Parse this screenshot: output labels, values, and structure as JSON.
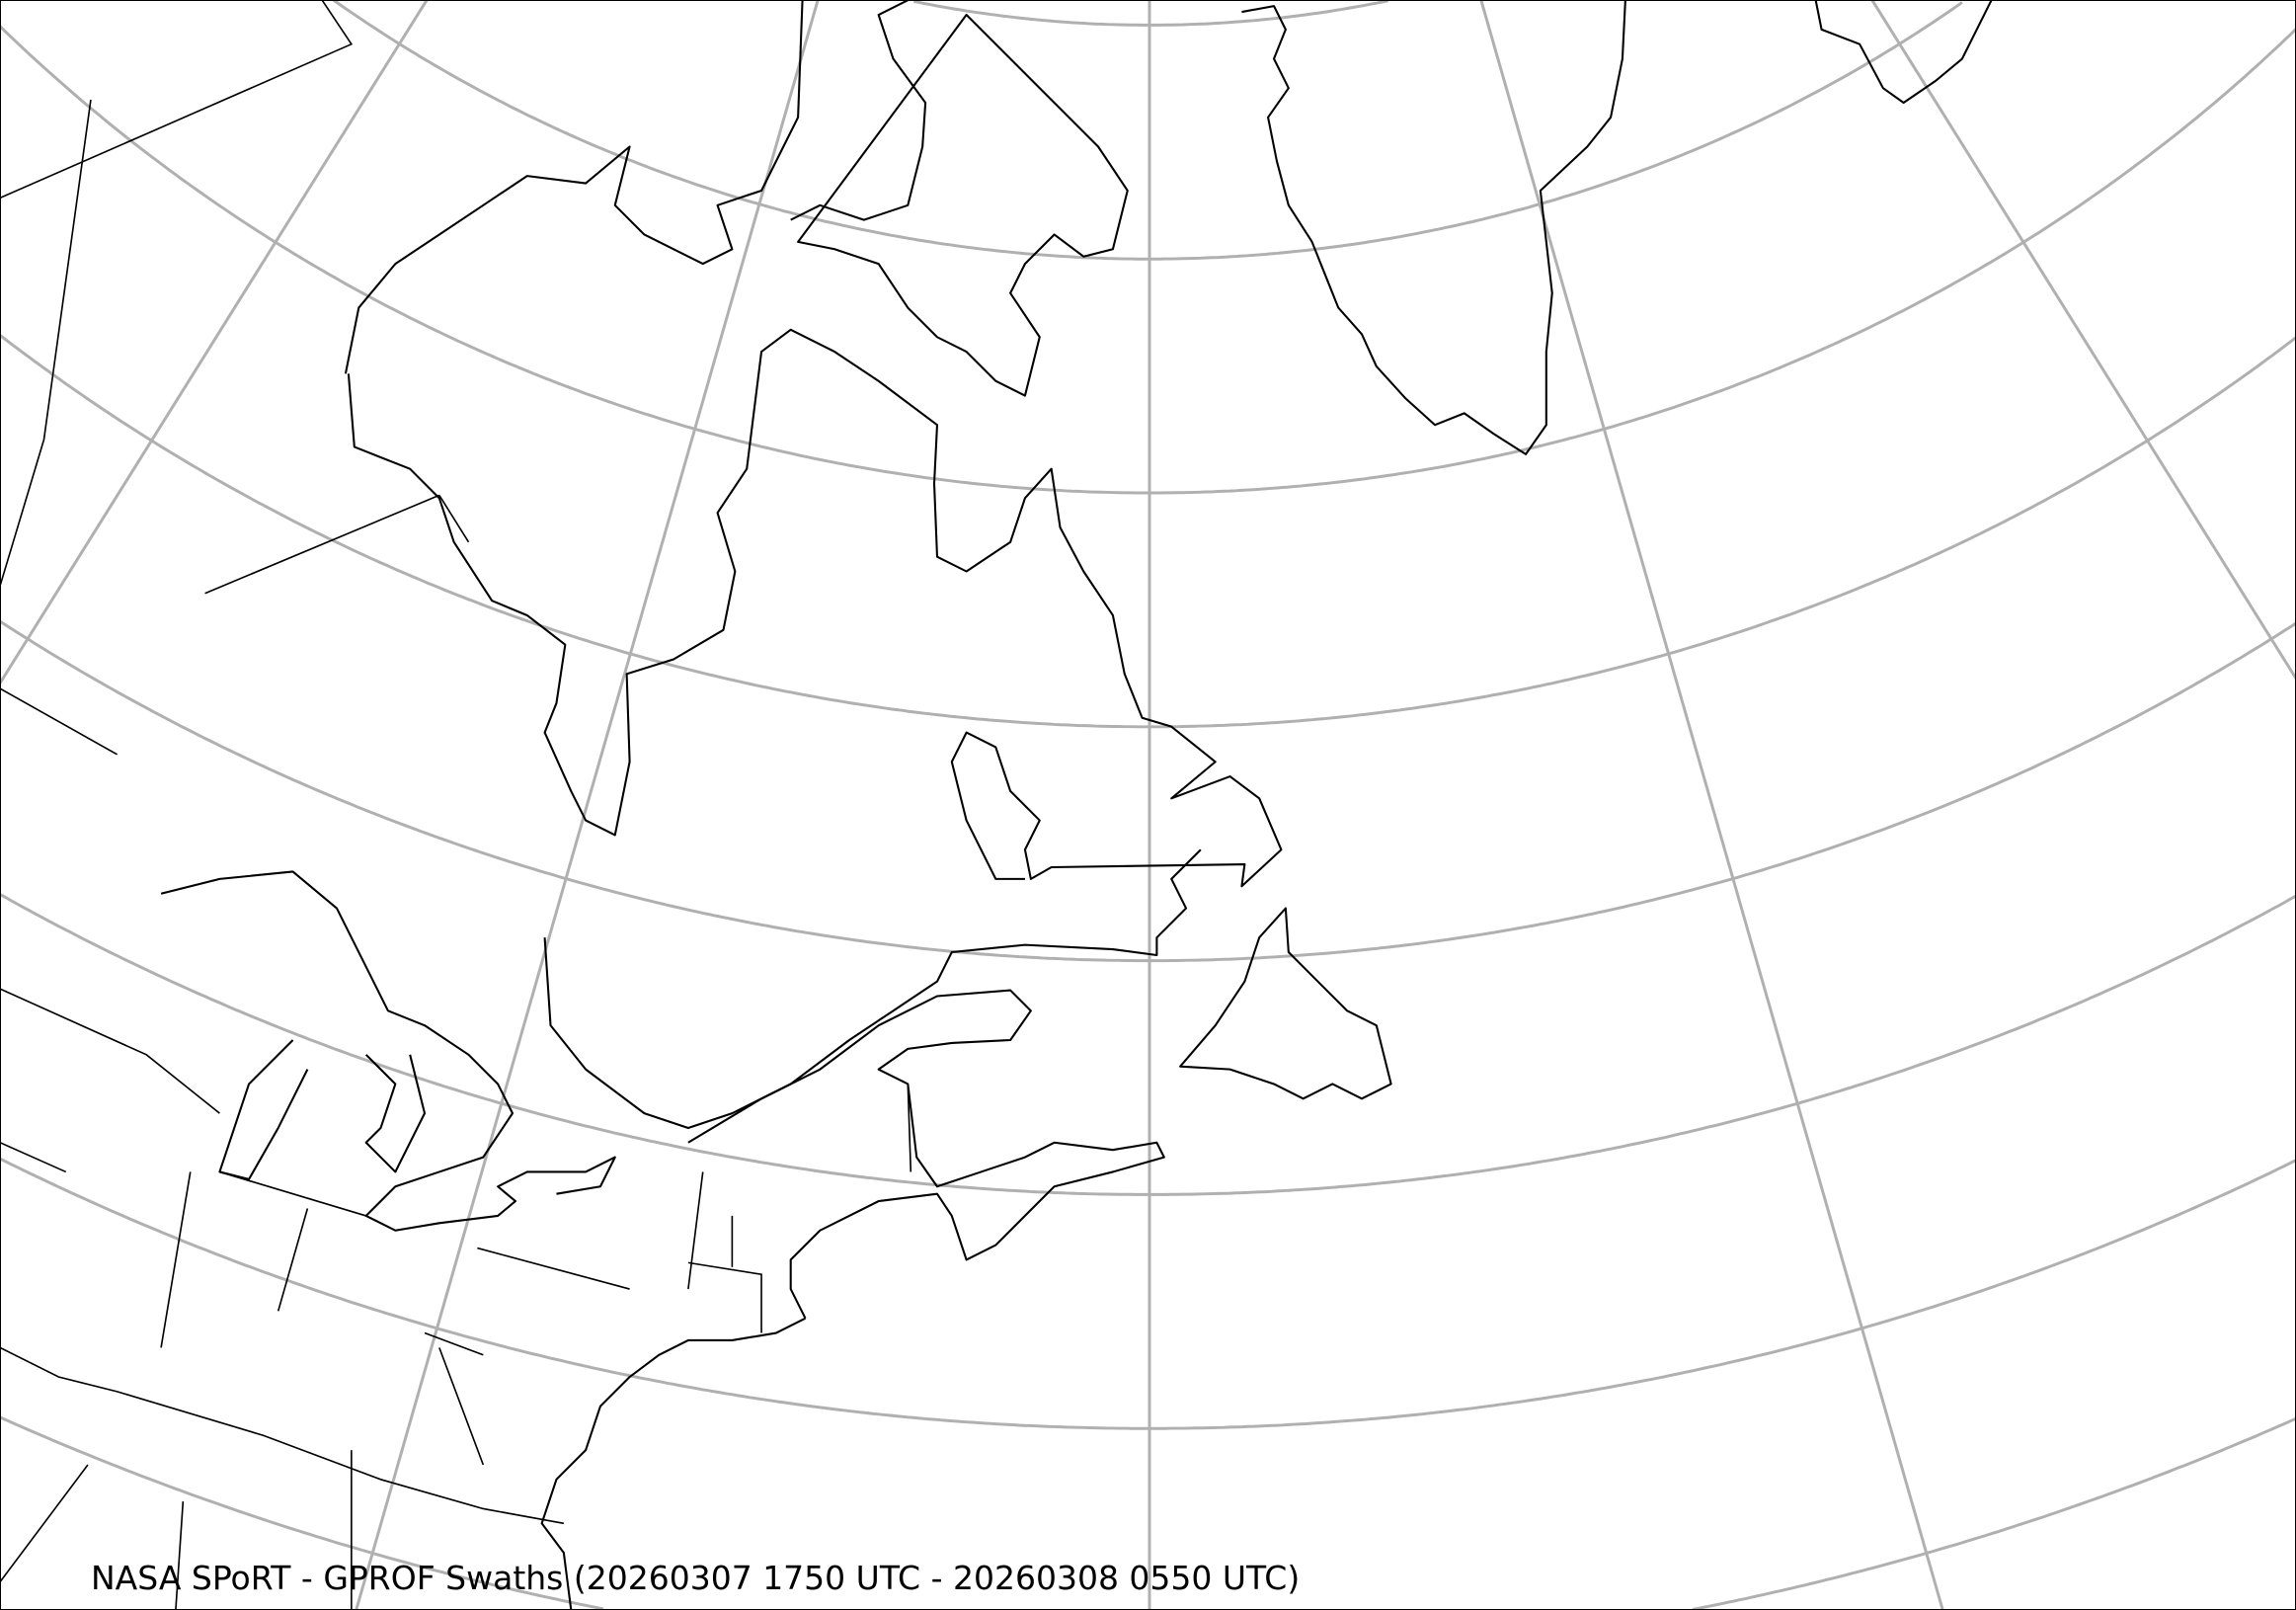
{
  "map": {
    "title": "NASA SPoRT - GPROF Swaths (20260307 1750 UTC - 20260308 0550 UTC)",
    "projection": "conic",
    "region": "Northeastern North America, Greenland and North Atlantic",
    "graticule": true,
    "colors": {
      "graticule": "#b0b0b0",
      "coastline": "#000000",
      "background": "#ffffff"
    }
  }
}
